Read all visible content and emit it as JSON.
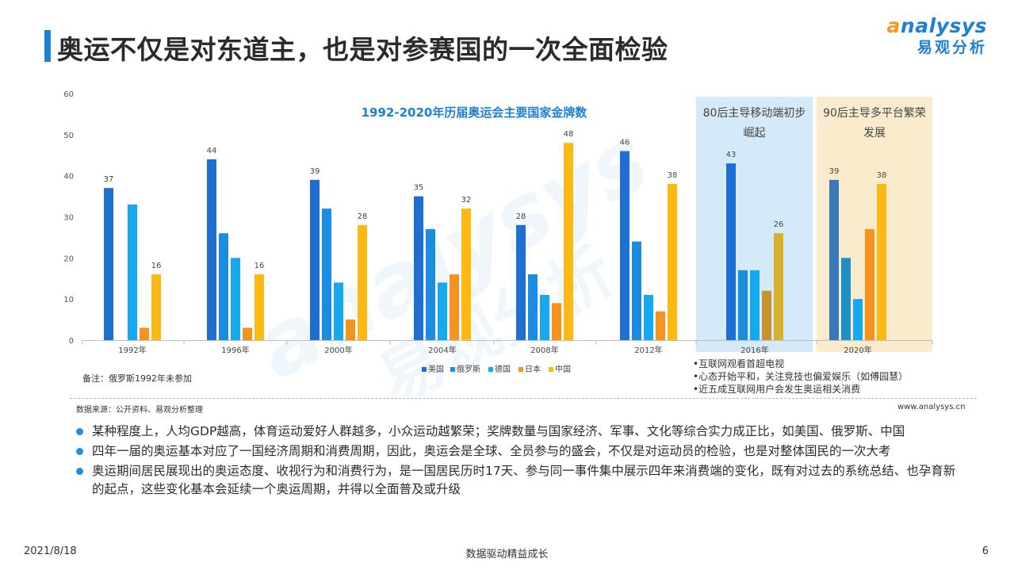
{
  "header": {
    "title": "奥运不仅是对东道主，也是对参赛国的一次全面检验"
  },
  "logo": {
    "en_first": "a",
    "en_rest": "nalysys",
    "cn": "易观分析"
  },
  "watermark": {
    "en": "analysys",
    "cn": "易观分析"
  },
  "chart_data": {
    "type": "bar",
    "title": "1992-2020年历届奥运会主要国家金牌数",
    "categories": [
      "1992年",
      "1996年",
      "2000年",
      "2004年",
      "2008年",
      "2012年",
      "2016年",
      "2020年"
    ],
    "series": [
      {
        "name": "美国",
        "color": "#1f6fd1",
        "values": [
          37,
          44,
          39,
          35,
          28,
          46,
          43,
          39
        ]
      },
      {
        "name": "俄罗斯",
        "color": "#1a8de0",
        "values": [
          null,
          26,
          32,
          27,
          16,
          24,
          17,
          20
        ]
      },
      {
        "name": "德国",
        "color": "#16a9f0",
        "values": [
          33,
          20,
          14,
          14,
          11,
          11,
          17,
          10
        ]
      },
      {
        "name": "日本",
        "color": "#f5931f",
        "values": [
          3,
          3,
          5,
          16,
          9,
          7,
          12,
          27
        ]
      },
      {
        "name": "中国",
        "color": "#fdb913",
        "values": [
          16,
          16,
          28,
          32,
          48,
          38,
          26,
          38
        ]
      }
    ],
    "data_labels_series": [
      "美国",
      "中国"
    ],
    "ylim": [
      0,
      60
    ],
    "yticks": [
      0,
      10,
      20,
      30,
      40,
      50,
      60
    ],
    "xlabel": "",
    "ylabel": "",
    "legend": "bottom",
    "highlight_boxes": [
      {
        "label": "80后主导移动端初步崛起",
        "category": "2016年",
        "color": "#d4eaf8"
      },
      {
        "label": "90后主导多平台繁荣发展",
        "category": "2020年",
        "color": "#fbebcd"
      }
    ]
  },
  "chart_note": "备注：俄罗斯1992年未参加",
  "box_notes": [
    "•互联网观看首超电视",
    "•心态开始平和，关注竞技也偏爱娱乐（如傅园慧）",
    "•近五成互联网用户会发生奥运相关消费"
  ],
  "source": "数据来源：公开资料、易观分析整理",
  "website": "www.analysys.cn",
  "bullets": [
    "某种程度上，人均GDP越高，体育运动爱好人群越多，小众运动越繁荣；奖牌数量与国家经济、军事、文化等综合实力成正比，如美国、俄罗斯、中国",
    "四年一届的奥运基本对应了一国经济周期和消费周期，因此，奥运会是全球、全员参与的盛会，不仅是对运动员的检验，也是对整体国民的一次大考",
    "奥运期间居民展现出的奥运态度、收视行为和消费行为，是一国居民历时17天、参与同一事件集中展示四年来消费端的变化，既有对过去的系统总结、也孕育新的起点，这些变化基本会延续一个奥运周期，并得以全面普及或升级"
  ],
  "footer": {
    "date": "2021/8/18",
    "center": "数据驱动精益成长",
    "page": "6"
  }
}
